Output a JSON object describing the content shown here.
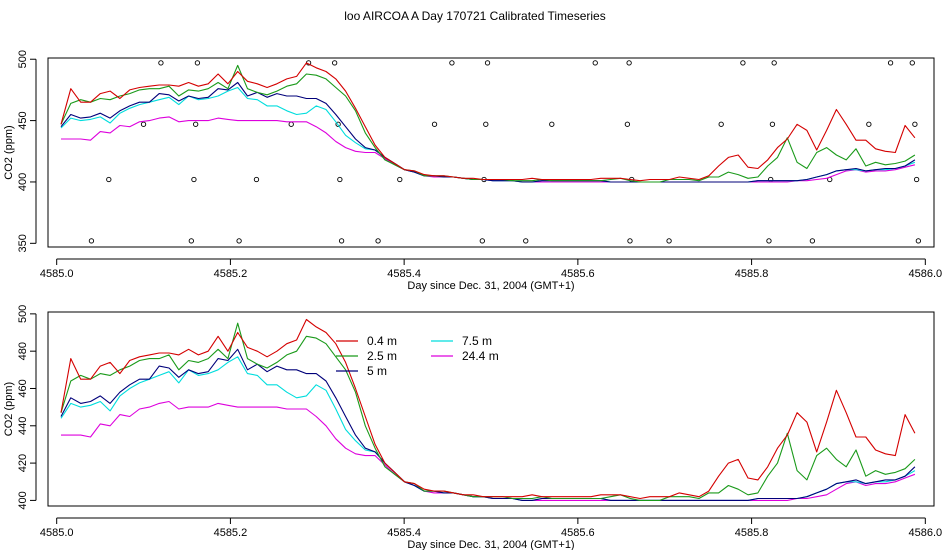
{
  "title": "loo AIRCOA A  Day 170721  Calibrated Timeseries",
  "chart_data": [
    {
      "type": "scatter",
      "panel": "top",
      "xlabel": "Day since Dec. 31, 2004 (GMT+1)",
      "ylabel": "CO2 (ppm)",
      "xlim": [
        4584.99,
        4586.01
      ],
      "ylim": [
        347,
        501
      ],
      "xticks": [
        "4585.0",
        "4585.2",
        "4585.4",
        "4585.6",
        "4585.8",
        "4586.0"
      ],
      "yticks": [
        "350",
        "400",
        "450",
        "500"
      ],
      "points": [
        [
          4585.04,
          352
        ],
        [
          4585.06,
          402
        ],
        [
          4585.1,
          447
        ],
        [
          4585.12,
          497
        ],
        [
          4585.155,
          352
        ],
        [
          4585.158,
          402
        ],
        [
          4585.16,
          447
        ],
        [
          4585.162,
          497
        ],
        [
          4585.21,
          352
        ],
        [
          4585.23,
          402
        ],
        [
          4585.27,
          447
        ],
        [
          4585.29,
          497
        ],
        [
          4585.32,
          497
        ],
        [
          4585.324,
          447
        ],
        [
          4585.326,
          402
        ],
        [
          4585.328,
          352
        ],
        [
          4585.37,
          352
        ],
        [
          4585.395,
          402
        ],
        [
          4585.435,
          447
        ],
        [
          4585.455,
          497
        ],
        [
          4585.49,
          352
        ],
        [
          4585.492,
          402
        ],
        [
          4585.494,
          447
        ],
        [
          4585.496,
          497
        ],
        [
          4585.54,
          352
        ],
        [
          4585.57,
          447
        ],
        [
          4585.62,
          497
        ],
        [
          4585.66,
          352
        ],
        [
          4585.662,
          402
        ],
        [
          4585.657,
          447
        ],
        [
          4585.659,
          497
        ],
        [
          4585.705,
          352
        ],
        [
          4585.765,
          447
        ],
        [
          4585.79,
          497
        ],
        [
          4585.82,
          352
        ],
        [
          4585.822,
          402
        ],
        [
          4585.824,
          447
        ],
        [
          4585.826,
          497
        ],
        [
          4585.87,
          352
        ],
        [
          4585.89,
          402
        ],
        [
          4585.935,
          447
        ],
        [
          4585.96,
          497
        ],
        [
          4585.985,
          497
        ],
        [
          4585.988,
          447
        ],
        [
          4585.99,
          402
        ],
        [
          4585.992,
          352
        ]
      ],
      "series": [
        {
          "name": "0.4 m",
          "color": "#d40000",
          "values": [
            447,
            476,
            465,
            465,
            472,
            474,
            468,
            475,
            477,
            478,
            479,
            479,
            478,
            481,
            478,
            480,
            488,
            480,
            490,
            482,
            480,
            477,
            480,
            484,
            486,
            497,
            493,
            490,
            484,
            474,
            460,
            445,
            430,
            420,
            415,
            410,
            409,
            406,
            405,
            405,
            404,
            403,
            403,
            402,
            402,
            402,
            402,
            402,
            403,
            402,
            402,
            402,
            402,
            402,
            402,
            403,
            403,
            403,
            402,
            401,
            402,
            402,
            402,
            404,
            403,
            402,
            405,
            413,
            420,
            422,
            412,
            411,
            418,
            428,
            435,
            447,
            442,
            426,
            442,
            459,
            447,
            434,
            434,
            427,
            425,
            424,
            446,
            436
          ]
        },
        {
          "name": "2.5 m",
          "color": "#1a9a1a",
          "values": [
            447,
            464,
            467,
            465,
            468,
            467,
            470,
            472,
            475,
            476,
            476,
            478,
            470,
            475,
            474,
            476,
            481,
            476,
            495,
            476,
            473,
            471,
            474,
            478,
            480,
            488,
            487,
            484,
            477,
            470,
            458,
            440,
            428,
            418,
            414,
            410,
            409,
            405,
            405,
            405,
            404,
            403,
            402,
            402,
            402,
            402,
            401,
            401,
            401,
            402,
            401,
            401,
            401,
            401,
            401,
            401,
            402,
            403,
            401,
            400,
            400,
            400,
            402,
            402,
            402,
            401,
            404,
            404,
            408,
            406,
            403,
            404,
            413,
            420,
            436,
            416,
            411,
            424,
            428,
            422,
            418,
            427,
            413,
            416,
            414,
            415,
            417,
            422
          ]
        },
        {
          "name": "5 m",
          "color": "#00007a",
          "values": [
            445,
            455,
            452,
            453,
            456,
            452,
            458,
            462,
            465,
            465,
            472,
            471,
            466,
            470,
            468,
            469,
            476,
            475,
            481,
            470,
            473,
            469,
            472,
            470,
            470,
            468,
            468,
            464,
            455,
            445,
            435,
            428,
            426,
            420,
            415,
            410,
            408,
            405,
            405,
            404,
            404,
            403,
            402,
            402,
            401,
            401,
            401,
            400,
            400,
            401,
            401,
            401,
            401,
            401,
            401,
            401,
            400,
            400,
            400,
            400,
            400,
            400,
            400,
            400,
            400,
            400,
            400,
            400,
            400,
            400,
            400,
            401,
            401,
            401,
            401,
            401,
            402,
            404,
            406,
            409,
            410,
            411,
            409,
            410,
            411,
            411,
            413,
            418
          ]
        },
        {
          "name": "7.5 m",
          "color": "#00dddd",
          "values": [
            444,
            452,
            450,
            451,
            453,
            448,
            456,
            460,
            463,
            465,
            467,
            469,
            463,
            470,
            467,
            468,
            470,
            474,
            477,
            468,
            467,
            462,
            462,
            458,
            455,
            456,
            462,
            459,
            449,
            438,
            432,
            427,
            426,
            420,
            415,
            410,
            408,
            405,
            405,
            404,
            404,
            403,
            402,
            402,
            401,
            401,
            401,
            400,
            400,
            401,
            401,
            401,
            401,
            401,
            401,
            401,
            400,
            400,
            400,
            400,
            400,
            400,
            400,
            400,
            400,
            400,
            400,
            400,
            400,
            400,
            400,
            401,
            401,
            401,
            401,
            401,
            402,
            404,
            406,
            409,
            410,
            410,
            409,
            410,
            410,
            411,
            413,
            416
          ]
        },
        {
          "name": "24.4 m",
          "color": "#dd00dd",
          "values": [
            435,
            435,
            435,
            434,
            441,
            440,
            446,
            445,
            449,
            450,
            452,
            453,
            449,
            450,
            450,
            450,
            452,
            451,
            450,
            450,
            450,
            450,
            450,
            449,
            449,
            449,
            445,
            440,
            433,
            428,
            425,
            424,
            424,
            419,
            414,
            410,
            408,
            405,
            404,
            404,
            404,
            403,
            402,
            402,
            401,
            401,
            401,
            400,
            400,
            400,
            400,
            400,
            400,
            400,
            400,
            400,
            400,
            400,
            400,
            400,
            400,
            400,
            400,
            400,
            400,
            400,
            400,
            400,
            400,
            400,
            400,
            400,
            400,
            400,
            400,
            401,
            401,
            402,
            403,
            406,
            409,
            410,
            408,
            409,
            409,
            410,
            412,
            414
          ]
        }
      ]
    },
    {
      "type": "line",
      "panel": "bottom",
      "xlabel": "Day since Dec. 31, 2004 (GMT+1)",
      "ylabel": "CO2 (ppm)",
      "xlim": [
        4584.99,
        4586.01
      ],
      "ylim": [
        397,
        501
      ],
      "xticks": [
        "4585.0",
        "4585.2",
        "4585.4",
        "4585.6",
        "4585.8",
        "4586.0"
      ],
      "yticks": [
        "400",
        "420",
        "440",
        "460",
        "480",
        "500"
      ],
      "legend": "top-left",
      "series_ref": "top"
    }
  ]
}
